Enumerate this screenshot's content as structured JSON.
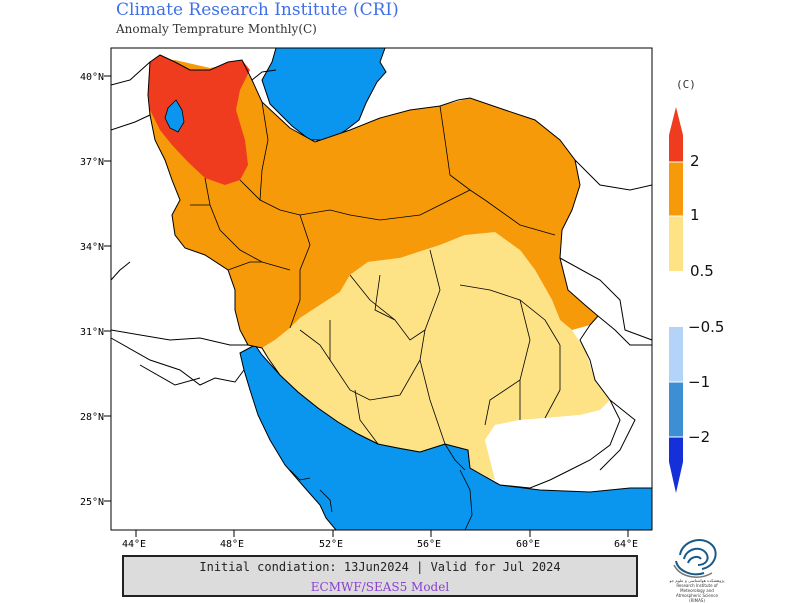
{
  "header": {
    "title": "Climate Research Institute (CRI)",
    "subtitle": "Anomaly Temprature Monthly(C)"
  },
  "map": {
    "lat_labels": [
      "40°N",
      "37°N",
      "34°N",
      "31°N",
      "28°N",
      "25°N"
    ],
    "lon_labels": [
      "44°E",
      "48°E",
      "52°E",
      "56°E",
      "60°E",
      "64°E"
    ],
    "colors": {
      "sea": "#0a96ee",
      "cat_2plus": "#f03c1e",
      "cat_1_2": "#f79a09",
      "cat_05_1": "#fde286",
      "neutral": "#ffffff"
    }
  },
  "legend": {
    "unit": "(C)",
    "labels": [
      "2",
      "1",
      "0.5",
      "−0.5",
      "−1",
      "−2"
    ],
    "colors": {
      "warm_extreme": "#f03c1e",
      "warm_high": "#f79a09",
      "warm_low": "#fde286",
      "cool_low": "#b3d3f8",
      "cool_high": "#3d8fd4",
      "cool_extreme": "#1530d8"
    }
  },
  "footer": {
    "line1": "Initial condiation: 13Jun2024 | Valid for Jul 2024",
    "line2": "ECMWF/SEAS5 Model"
  },
  "logo": {
    "text": "پژوهشکده هواشناسی و علوم جو\nResearch Institute of Meteorology\nand Atmospheric Science (RIMAS)"
  }
}
